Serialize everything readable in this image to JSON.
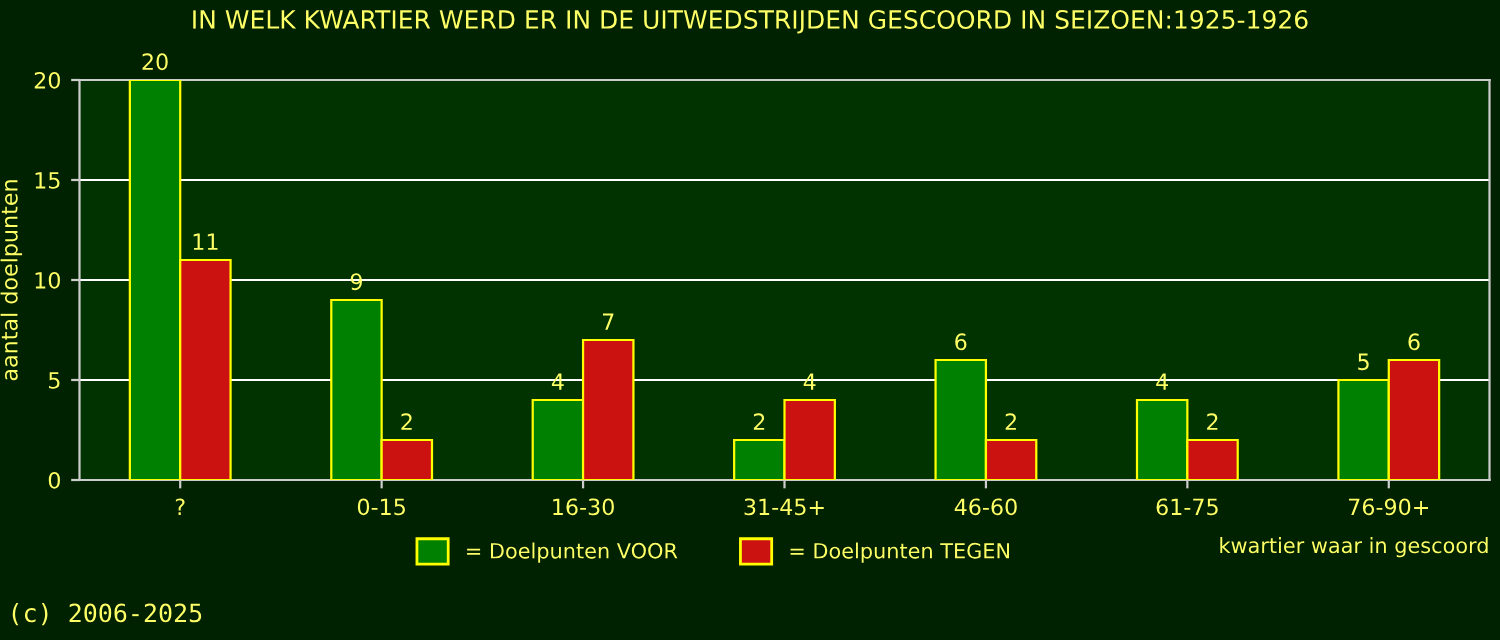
{
  "chart_data": {
    "type": "bar",
    "title": "IN WELK KWARTIER WERD ER IN DE UITWEDSTRIJDEN GESCOORD IN SEIZOEN:1925-1926",
    "xlabel": "kwartier waar in gescoord",
    "ylabel": "aantal doelpunten",
    "categories": [
      "?",
      "0-15",
      "16-30",
      "31-45+",
      "46-60",
      "61-75",
      "76-90+"
    ],
    "series": [
      {
        "name": "= Doelpunten VOOR",
        "color": "#008000",
        "values": [
          20,
          9,
          4,
          2,
          6,
          4,
          5
        ]
      },
      {
        "name": "= Doelpunten TEGEN",
        "color": "#cc1111",
        "values": [
          11,
          2,
          7,
          4,
          2,
          2,
          6
        ]
      }
    ],
    "ylim": [
      0,
      20
    ],
    "yticks": [
      0,
      5,
      10,
      15,
      20
    ],
    "grid": "y",
    "legend": "bottom",
    "data_labels": true,
    "annotations": [
      "(c) 2006-2025"
    ]
  }
}
